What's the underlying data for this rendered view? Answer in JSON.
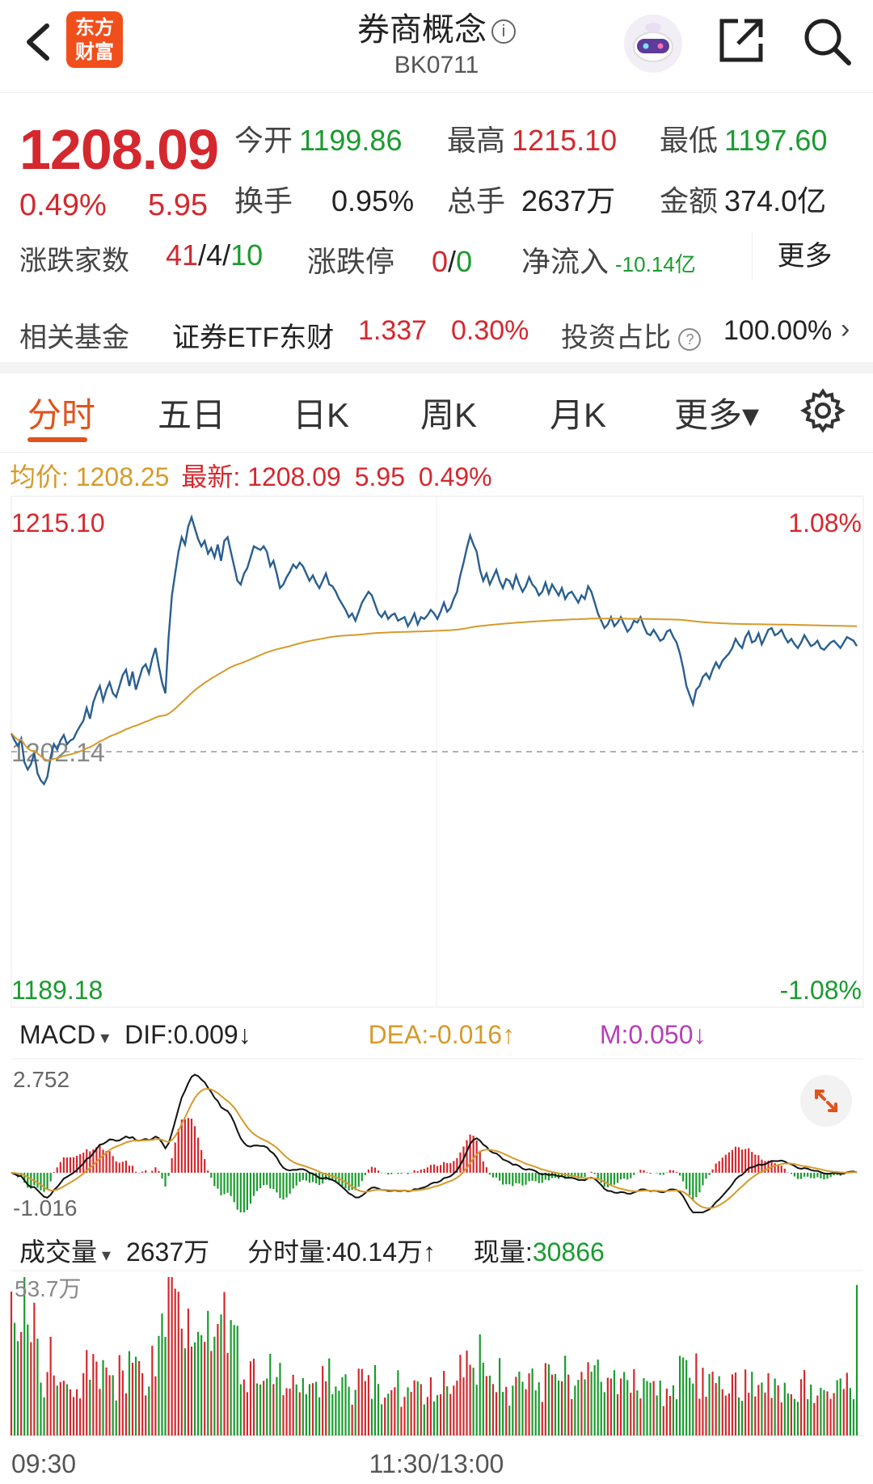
{
  "header": {
    "logo_line1": "东方",
    "logo_line2": "财富",
    "title": "券商概念",
    "title_info_icon": "ⓘ",
    "code": "BK0711"
  },
  "quote": {
    "price": "1208.09",
    "change_pct": "0.49%",
    "change": "5.95",
    "open_label": "今开",
    "open": "1199.86",
    "high_label": "最高",
    "high": "1215.10",
    "low_label": "最低",
    "low": "1197.60",
    "turnover_label": "换手",
    "turnover": "0.95%",
    "volume_label": "总手",
    "volume": "2637万",
    "amount_label": "金额",
    "amount": "374.0亿",
    "breadth_label": "涨跌家数",
    "breadth_up": "41",
    "breadth_sep1": "/",
    "breadth_flat": "4",
    "breadth_sep2": "/",
    "breadth_down": "10",
    "limit_label": "涨跌停",
    "limit_up": "0",
    "limit_sep": "/",
    "limit_down": "0",
    "netflow_label": "净流入",
    "netflow": "-10.14亿",
    "more": "更多"
  },
  "fund": {
    "label": "相关基金",
    "name": "证券ETF东财",
    "price": "1.337",
    "pct": "0.30%",
    "ratio_label": "投资占比",
    "ratio": "100.00%",
    "chevron": "›"
  },
  "tabs": [
    "分时",
    "五日",
    "日K",
    "周K",
    "月K",
    "更多▾"
  ],
  "avg_line": {
    "avg_label": "均价:",
    "avg": "1208.25",
    "latest_label": "最新:",
    "latest": "1208.09",
    "chg": "5.95",
    "pct": "0.49%"
  },
  "chart_data": {
    "type": "line",
    "price_axis": {
      "top": "1215.10",
      "base": "1202.14",
      "bottom": "1189.18",
      "top_pct": "1.08%",
      "bottom_pct": "-1.08%"
    },
    "price_series": [
      1203.2,
      1202.8,
      1202.5,
      1202.9,
      1201.6,
      1201.2,
      1201.5,
      1202.1,
      1201.0,
      1200.6,
      1200.4,
      1200.8,
      1201.9,
      1202.6,
      1202.3,
      1202.8,
      1203.1,
      1202.6,
      1202.8,
      1202.9,
      1203.3,
      1203.6,
      1203.9,
      1204.6,
      1204.0,
      1204.9,
      1205.4,
      1205.8,
      1205.0,
      1205.6,
      1206.0,
      1205.4,
      1205.2,
      1205.8,
      1206.4,
      1206.7,
      1205.8,
      1206.6,
      1205.6,
      1206.2,
      1206.8,
      1207.0,
      1206.5,
      1207.3,
      1207.9,
      1206.9,
      1206.0,
      1205.4,
      1208.5,
      1210.8,
      1212.0,
      1213.2,
      1214.0,
      1213.6,
      1214.6,
      1215.1,
      1214.5,
      1213.9,
      1213.5,
      1213.8,
      1213.1,
      1213.4,
      1212.9,
      1213.6,
      1212.7,
      1213.8,
      1214.0,
      1213.2,
      1212.4,
      1211.6,
      1211.4,
      1212.0,
      1212.3,
      1212.9,
      1213.5,
      1213.4,
      1213.3,
      1213.5,
      1213.2,
      1212.4,
      1212.7,
      1212.0,
      1211.2,
      1211.4,
      1211.8,
      1212.1,
      1212.5,
      1212.3,
      1212.6,
      1212.4,
      1212.0,
      1211.6,
      1211.9,
      1211.5,
      1211.2,
      1211.6,
      1212.0,
      1211.4,
      1211.3,
      1211.0,
      1210.6,
      1210.3,
      1210.0,
      1209.6,
      1209.8,
      1209.4,
      1209.9,
      1210.4,
      1210.7,
      1211.0,
      1210.8,
      1210.3,
      1209.8,
      1209.6,
      1209.9,
      1209.5,
      1209.7,
      1209.8,
      1209.4,
      1209.5,
      1209.6,
      1209.1,
      1209.4,
      1209.8,
      1209.2,
      1209.6,
      1209.5,
      1209.7,
      1210.0,
      1209.8,
      1209.5,
      1209.9,
      1210.4,
      1209.9,
      1210.1,
      1210.6,
      1211.0,
      1211.9,
      1212.6,
      1213.4,
      1214.1,
      1213.6,
      1213.2,
      1212.2,
      1211.6,
      1212.0,
      1211.4,
      1211.8,
      1212.2,
      1211.6,
      1211.2,
      1211.7,
      1211.6,
      1211.2,
      1211.9,
      1211.4,
      1211.0,
      1211.3,
      1211.8,
      1211.4,
      1211.2,
      1210.8,
      1211.0,
      1211.5,
      1210.9,
      1211.4,
      1211.1,
      1210.8,
      1211.2,
      1210.6,
      1210.9,
      1211.0,
      1210.7,
      1210.4,
      1210.8,
      1210.6,
      1211.3,
      1211.0,
      1210.4,
      1209.8,
      1209.4,
      1209.0,
      1209.2,
      1209.6,
      1209.1,
      1209.3,
      1209.6,
      1209.2,
      1208.8,
      1209.0,
      1209.4,
      1209.3,
      1209.6,
      1209.1,
      1208.7,
      1208.6,
      1208.9,
      1208.6,
      1208.3,
      1208.4,
      1208.8,
      1208.9,
      1208.5,
      1208.2,
      1207.6,
      1206.8,
      1205.8,
      1205.3,
      1204.8,
      1205.6,
      1205.8,
      1206.3,
      1206.5,
      1206.2,
      1206.7,
      1207.1,
      1206.8,
      1207.2,
      1207.4,
      1207.6,
      1207.9,
      1208.4,
      1208.1,
      1207.9,
      1208.5,
      1208.8,
      1208.2,
      1208.3,
      1208.7,
      1208.1,
      1208.5,
      1208.9,
      1209.0,
      1208.6,
      1208.7,
      1208.9,
      1208.5,
      1208.2,
      1208.4,
      1208.1,
      1207.9,
      1208.2,
      1208.6,
      1208.3,
      1208.0,
      1208.1,
      1208.3,
      1207.9,
      1207.8,
      1208.0,
      1208.2,
      1208.3,
      1208.1,
      1207.9,
      1208.2,
      1208.5,
      1208.4,
      1208.3,
      1208.0
    ],
    "avg_series_desc": "cumulative average",
    "macd_axis": {
      "top": "2.752",
      "bottom": "-1.016"
    },
    "macd_header": {
      "label": "MACD",
      "arrow": "▾",
      "dif": "DIF:0.009↓",
      "dea": "DEA:-0.016↑",
      "m": "M:0.050↓"
    },
    "volume_axis": {
      "top": "53.7万"
    },
    "volume_header": {
      "label": "成交量",
      "arrow": "▾",
      "total": "2637万",
      "minute": "分时量:40.14万↑",
      "now_label": "现量:",
      "now": "30866"
    },
    "time_axis": [
      "09:30",
      "11:30/13:00"
    ]
  },
  "colors": {
    "up": "#d4282e",
    "down": "#1a9b2e",
    "accent": "#e0531d",
    "price_line": "#2a5f8f",
    "avg_line": "#d69a2b",
    "dea_line": "#d69a2b",
    "dif_line": "#111111"
  }
}
